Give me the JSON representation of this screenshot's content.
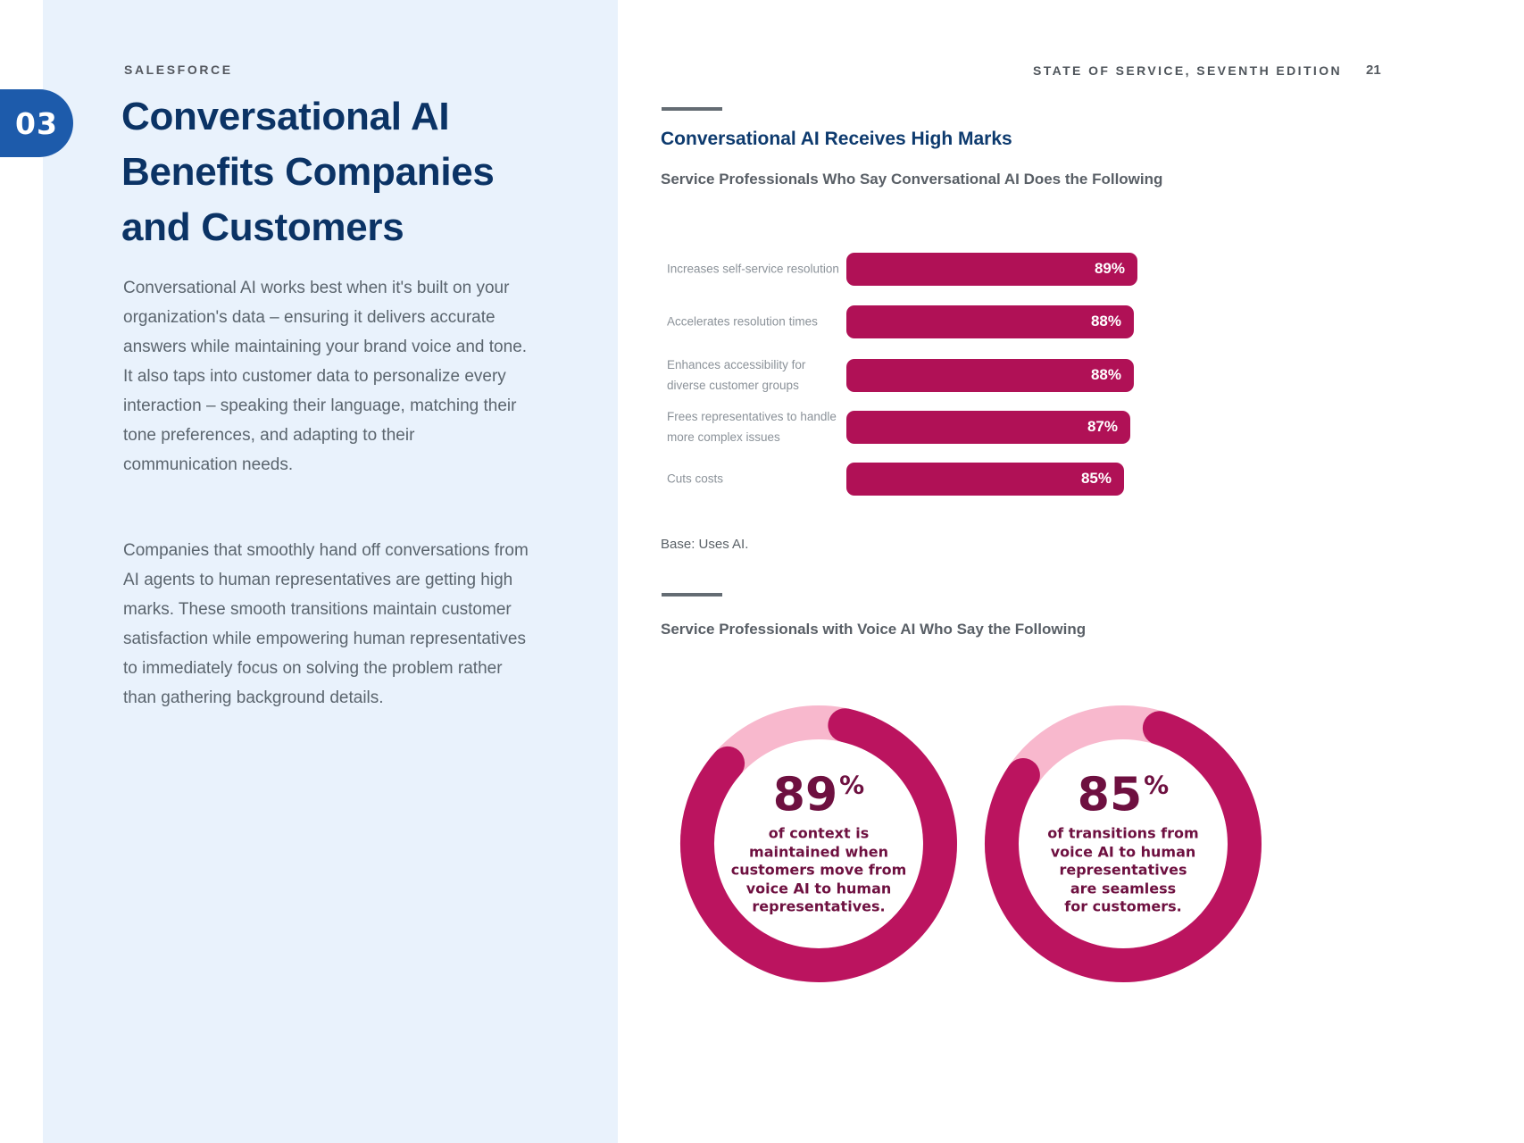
{
  "page": {
    "brand": "SALESFORCE",
    "chapter_number": "03",
    "title_lines": [
      "Conversational AI",
      "Benefits Companies",
      "and Customers"
    ],
    "paragraphs": [
      "Conversational AI works best when it's built on your organization's data – ensuring it delivers accurate answers while maintaining your brand voice and tone. It also taps into customer data to personalize every interaction – speaking their language, matching their tone preferences, and adapting to their communication needs.",
      "Companies that smoothly hand off conversations from AI agents to human representatives are getting high marks. These smooth transitions maintain customer satisfaction while empowering human representatives to immediately focus on solving the problem rather than gathering background details."
    ],
    "header_right": "STATE OF SERVICE, SEVENTH EDITION",
    "page_number": "21"
  },
  "colors": {
    "accent_blue": "#1d5bab",
    "navy": "#0b3365",
    "panel_blue": "#e9f2fc",
    "bar_pink": "#b01156",
    "donut_pink": "#bb145f",
    "donut_track_pink": "#f8b8cd",
    "donut_text_maroon": "#6e1040",
    "body_gray": "#5b656e",
    "label_gray": "#8b9299"
  },
  "chart_data": [
    {
      "type": "bar",
      "title": "Conversational AI Receives High Marks",
      "subtitle": "Service Professionals Who Say Conversational AI Does the Following",
      "categories": [
        "Increases self-service resolution",
        "Accelerates resolution times",
        "Enhances accessibility for diverse customer groups",
        "Frees representatives to handle more complex issues",
        "Cuts costs"
      ],
      "category_display_lines": [
        [
          "Increases self-service resolution"
        ],
        [
          "Accelerates resolution times"
        ],
        [
          "Enhances accessibility for",
          "diverse customer groups"
        ],
        [
          "Frees representatives to handle",
          "more complex issues"
        ],
        [
          "Cuts costs"
        ]
      ],
      "values": [
        89,
        88,
        88,
        87,
        85
      ],
      "unit": "%",
      "xlim": [
        0,
        100
      ],
      "note": "Base: Uses AI.",
      "legend": "none",
      "grid": "off"
    },
    {
      "type": "donut",
      "title": "Service Professionals with Voice AI Who Say the Following",
      "donuts": [
        {
          "percent": 89,
          "value_label": "89",
          "unit": "%",
          "caption": "of context is maintained when customers move from voice AI to human representatives.",
          "caption_lines": [
            "of context is",
            "maintained when",
            "customers move from",
            "voice AI to human",
            "representatives."
          ]
        },
        {
          "percent": 85,
          "value_label": "85",
          "unit": "%",
          "caption": "of transitions from voice AI to human representatives are seamless for customers.",
          "caption_lines": [
            "of transitions from",
            "voice AI to human",
            "representatives",
            "are seamless",
            "for customers."
          ]
        }
      ]
    }
  ]
}
